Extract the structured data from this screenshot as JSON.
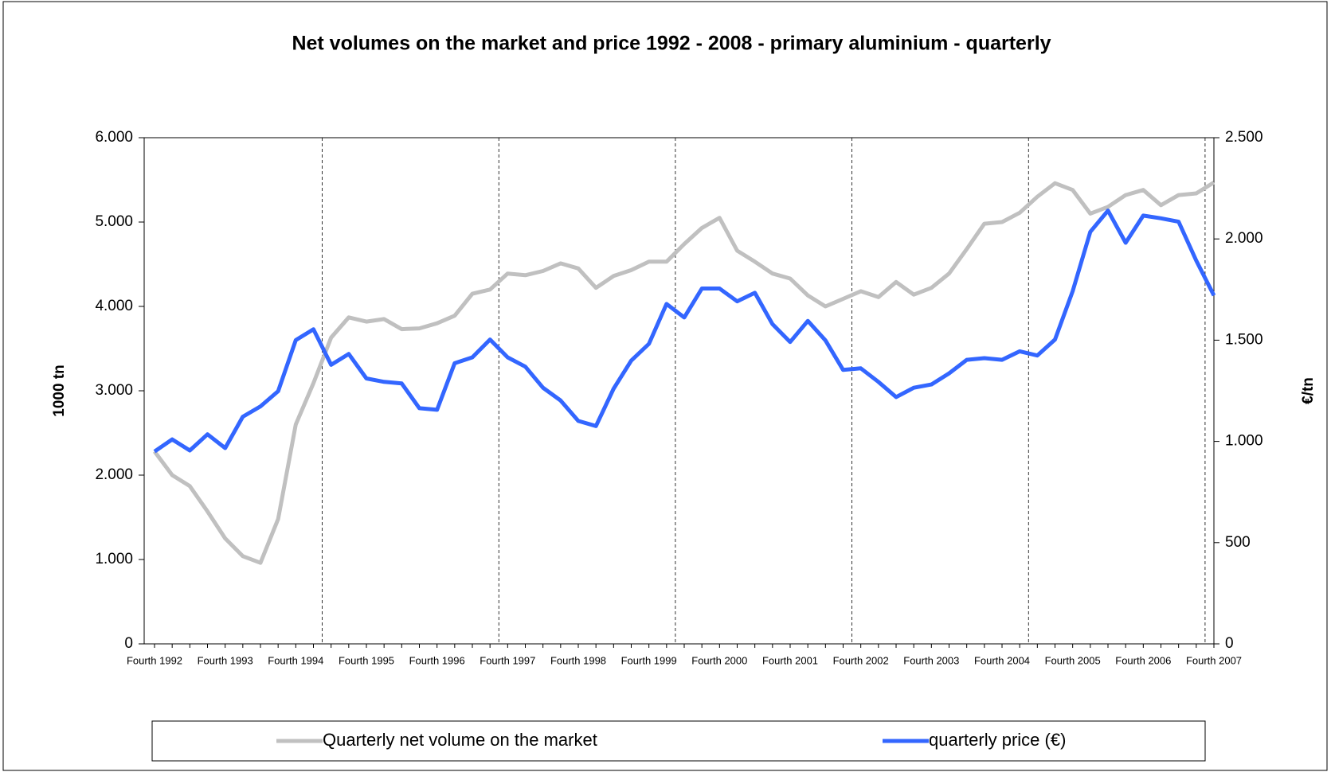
{
  "chart_data": {
    "type": "line",
    "title": "Net volumes on the market and price 1992 - 2008 - primary aluminium - quarterly",
    "ylabel": "1000 tn",
    "y2label": "€/tn",
    "categories": [
      "Fourth 1992",
      null,
      null,
      null,
      "Fourth 1993",
      null,
      null,
      null,
      "Fourth 1994",
      null,
      null,
      null,
      "Fourth 1995",
      null,
      null,
      null,
      "Fourth 1996",
      null,
      null,
      null,
      "Fourth 1997",
      null,
      null,
      null,
      "Fourth 1998",
      null,
      null,
      null,
      "Fourth 1999",
      null,
      null,
      null,
      "Fourth 2000",
      null,
      null,
      null,
      "Fourth 2001",
      null,
      null,
      null,
      "Fourth 2002",
      null,
      null,
      null,
      "Fourth 2003",
      null,
      null,
      null,
      "Fourth 2004",
      null,
      null,
      null,
      "Fourth 2005",
      null,
      null,
      null,
      "Fourth 2006",
      null,
      null,
      null,
      "Fourth 2007"
    ],
    "series": [
      {
        "name": "Quarterly net volume on the market",
        "color": "#c0c0c0",
        "axis": "y",
        "values": [
          2280,
          2000,
          1870,
          1570,
          1250,
          1040,
          960,
          1480,
          2600,
          3090,
          3630,
          3870,
          3820,
          3850,
          3730,
          3740,
          3800,
          3890,
          4150,
          4200,
          4390,
          4370,
          4420,
          4510,
          4450,
          4220,
          4360,
          4430,
          4530,
          4530,
          4740,
          4930,
          5050,
          4660,
          4530,
          4390,
          4330,
          4130,
          4000,
          4090,
          4180,
          4110,
          4290,
          4140,
          4220,
          4390,
          4680,
          4980,
          5000,
          5110,
          5300,
          5460,
          5380,
          5100,
          5180,
          5320,
          5380,
          5200,
          5320,
          5340,
          5470
        ]
      },
      {
        "name": "quarterly price (€)",
        "color": "#3366ff",
        "axis": "y2",
        "values": [
          950,
          1010,
          955,
          1035,
          967,
          1122,
          1173,
          1248,
          1500,
          1554,
          1378,
          1432,
          1311,
          1294,
          1286,
          1164,
          1156,
          1386,
          1415,
          1503,
          1415,
          1369,
          1265,
          1202,
          1101,
          1076,
          1260,
          1399,
          1482,
          1679,
          1612,
          1755,
          1755,
          1692,
          1734,
          1579,
          1491,
          1595,
          1499,
          1353,
          1361,
          1294,
          1219,
          1265,
          1281,
          1336,
          1403,
          1411,
          1403,
          1445,
          1424,
          1503,
          1742,
          2035,
          2140,
          1981,
          2115,
          2102,
          2085,
          1893,
          1721
        ]
      }
    ],
    "ylim": [
      0,
      6000
    ],
    "yticks": [
      0,
      {
        "value": 1000,
        "label": "1.000"
      },
      {
        "value": 2000,
        "label": "2.000"
      },
      {
        "value": 3000,
        "label": "3.000"
      },
      {
        "value": 4000,
        "label": "4.000"
      },
      {
        "value": 5000,
        "label": "5.000"
      },
      {
        "value": 6000,
        "label": "6.000"
      }
    ],
    "y2lim": [
      0,
      2500
    ],
    "y2ticks": [
      0,
      500,
      {
        "value": 1000,
        "label": "1.000"
      },
      {
        "value": 1500,
        "label": "1.500"
      },
      {
        "value": 2000,
        "label": "2.000"
      },
      {
        "value": 2500,
        "label": "2.500"
      }
    ],
    "legend": "bottom"
  }
}
